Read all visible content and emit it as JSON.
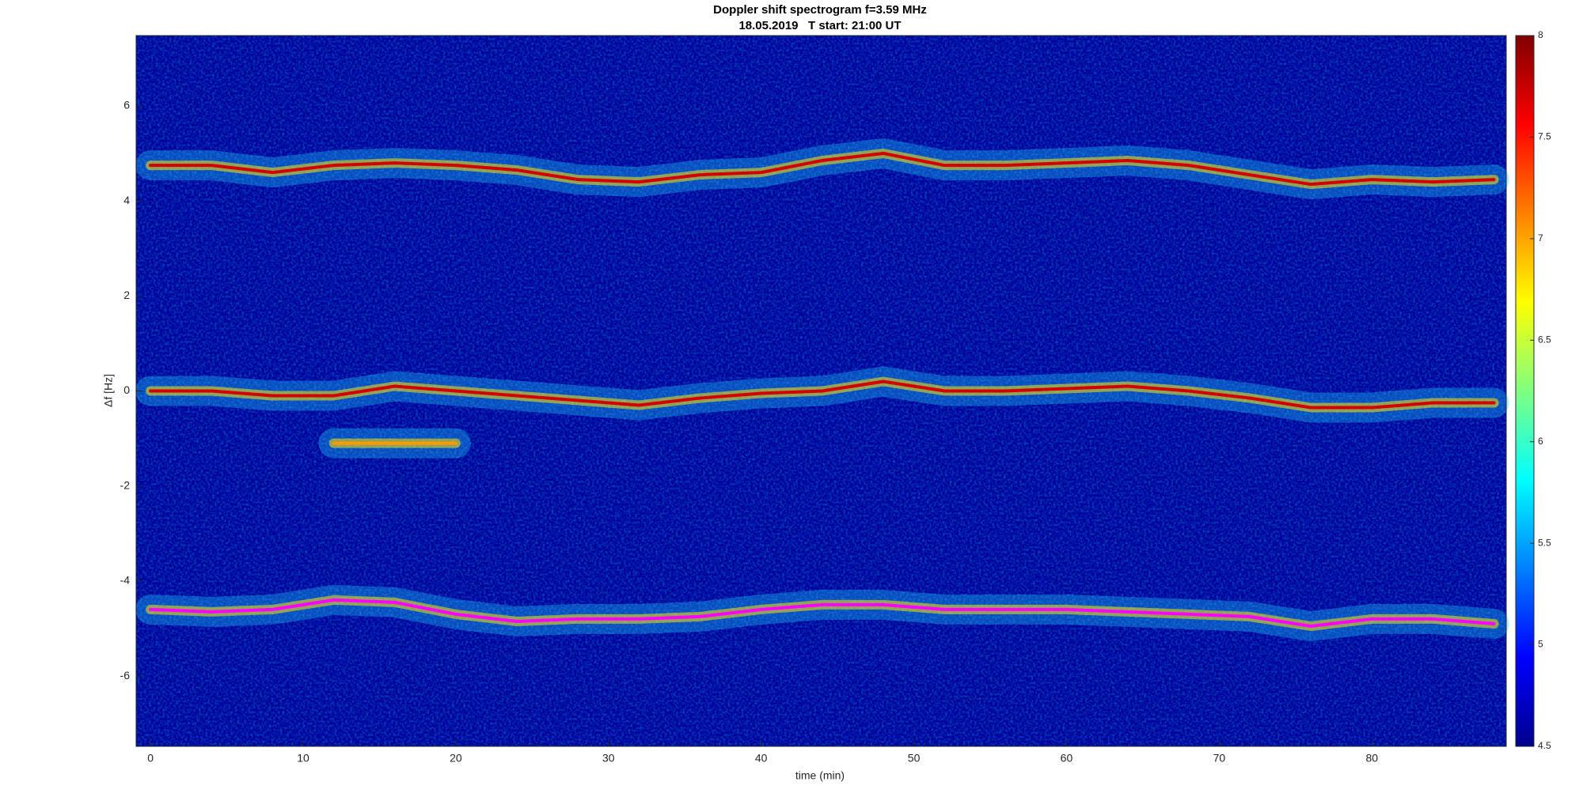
{
  "chart_data": {
    "type": "spectrogram",
    "title": "Doppler shift spectrogram f=3.59 MHz",
    "subtitle": "18.05.2019   T start: 21:00 UT",
    "x_label": "time (min)",
    "y_label": "Δf [Hz]",
    "x": [
      0,
      4,
      8,
      12,
      16,
      20,
      24,
      28,
      32,
      36,
      40,
      44,
      48,
      52,
      56,
      60,
      64,
      68,
      72,
      76,
      80,
      84,
      88
    ],
    "series": [
      {
        "color": "#d40000",
        "values": [
          4.75,
          4.75,
          4.6,
          4.75,
          4.8,
          4.75,
          4.65,
          4.45,
          4.4,
          4.55,
          4.6,
          4.85,
          5.0,
          4.75,
          4.75,
          4.8,
          4.85,
          4.75,
          4.55,
          4.35,
          4.45,
          4.4,
          4.45
        ]
      },
      {
        "color": "#d40000",
        "values": [
          0,
          0,
          -0.1,
          -0.1,
          0.1,
          0,
          -0.1,
          -0.2,
          -0.3,
          -0.15,
          -0.05,
          0,
          0.2,
          0,
          0,
          0.05,
          0.1,
          0,
          -0.15,
          -0.35,
          -0.35,
          -0.25,
          -0.25
        ]
      },
      {
        "color": "#ff9900",
        "values": [
          null,
          null,
          null,
          -1.1,
          -1.1,
          -1.1,
          null,
          null,
          null,
          null,
          null,
          null,
          null,
          null,
          null,
          null,
          null,
          null,
          null,
          null,
          null,
          null,
          null
        ]
      },
      {
        "color": "#ff00ff",
        "values": [
          -4.6,
          -4.65,
          -4.6,
          -4.4,
          -4.45,
          -4.7,
          -4.85,
          -4.8,
          -4.8,
          -4.75,
          -4.6,
          -4.5,
          -4.5,
          -4.6,
          -4.6,
          -4.6,
          -4.65,
          -4.7,
          -4.75,
          -4.95,
          -4.8,
          -4.8,
          -4.9
        ]
      }
    ],
    "xlim": [
      -0.94,
      88.8
    ],
    "ylim": [
      -7.48,
      7.48
    ],
    "xticks": [
      0,
      10,
      20,
      30,
      40,
      50,
      60,
      70,
      80
    ],
    "yticks": [
      -6,
      -4,
      -2,
      0,
      2,
      4,
      6
    ],
    "clim": [
      4.5,
      8
    ],
    "cticks": [
      4.5,
      5,
      5.5,
      6,
      6.5,
      7,
      7.5,
      8
    ]
  }
}
